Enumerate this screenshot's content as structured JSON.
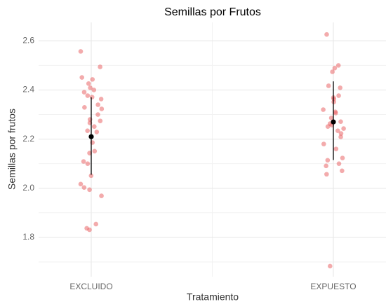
{
  "chart_data": {
    "type": "strip",
    "title": "Semillas por Frutos",
    "xlabel": "Tratamiento",
    "ylabel": "Semillas por frutos",
    "categories": [
      "EXCLUIDO",
      "EXPUESTO"
    ],
    "values": [
      [
        2.557,
        2.494,
        2.451,
        2.443,
        2.426,
        2.409,
        2.4,
        2.391,
        2.377,
        2.371,
        2.363,
        2.34,
        2.329,
        2.323,
        2.3,
        2.28,
        2.274,
        2.266,
        2.251,
        2.234,
        2.229,
        2.186,
        2.151,
        2.143,
        2.109,
        2.1,
        2.051,
        2.017,
        2.003,
        1.994,
        1.969,
        1.854,
        1.837,
        1.831
      ],
      [
        2.626,
        2.5,
        2.489,
        2.474,
        2.417,
        2.409,
        2.377,
        2.369,
        2.363,
        2.351,
        2.32,
        2.311,
        2.306,
        2.286,
        2.271,
        2.263,
        2.257,
        2.251,
        2.243,
        2.234,
        2.223,
        2.209,
        2.18,
        2.16,
        2.123,
        2.114,
        2.1,
        2.091,
        2.071,
        2.057,
        1.683
      ]
    ],
    "means": [
      2.21,
      2.27
    ],
    "lower": [
      2.055,
      2.115
    ],
    "upper": [
      2.37,
      2.435
    ],
    "color": "#e8575a",
    "mean_color": "#000000",
    "ylim": [
      1.64,
      2.675
    ],
    "yticks": [
      1.8,
      {
        "value": 2,
        "label": "2.0"
      },
      2.2,
      2.4,
      2.6
    ],
    "grid": true
  }
}
